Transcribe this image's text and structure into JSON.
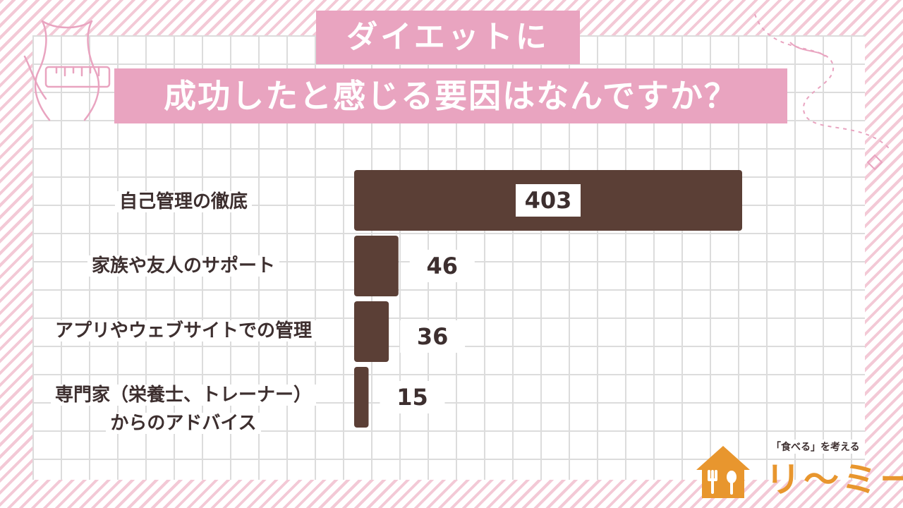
{
  "title": {
    "line1": "ダイエットに",
    "line2": "成功したと感じる要因はなんですか？"
  },
  "chart_data": {
    "type": "bar",
    "orientation": "horizontal",
    "categories": [
      "自己管理の徹底",
      "家族や友人のサポート",
      "アプリやウェブサイトでの管理",
      "専門家（栄養士、トレーナー）からのアドバイス"
    ],
    "category_lines": [
      [
        "自己管理の徹底"
      ],
      [
        "家族や友人のサポート"
      ],
      [
        "アプリやウェブサイトでの管理"
      ],
      [
        "専門家（栄養士、トレーナー）",
        "からのアドバイス"
      ]
    ],
    "values": [
      403,
      46,
      36,
      15
    ],
    "xlim": [
      0,
      403
    ],
    "grid": true,
    "legend": "none",
    "bar_color": "#5b3f36"
  },
  "logo": {
    "tagline": "「食べる」を考える",
    "name": "リ〜ミー"
  },
  "colors": {
    "title_bg": "#e9a4c0",
    "bar": "#5b3f36",
    "logo": "#e8962e",
    "stripe": "#f3c9d6"
  }
}
